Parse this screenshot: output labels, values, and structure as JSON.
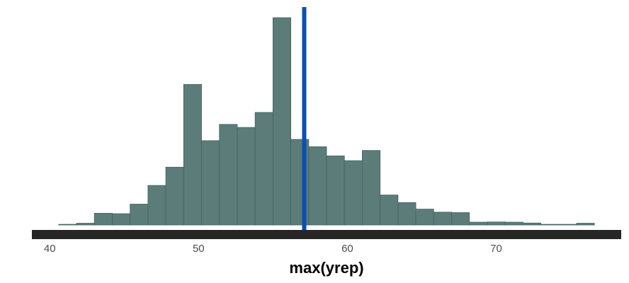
{
  "chart_data": {
    "type": "bar",
    "subtype": "histogram",
    "title": "",
    "xlabel": "max(yrep)",
    "ylabel": "",
    "xlim": [
      38.8,
      78.4
    ],
    "ylim": [
      0,
      100
    ],
    "x_ticks": [
      40,
      50,
      60,
      70
    ],
    "y_axis_visible": false,
    "grid": false,
    "bin_width": 1.2,
    "bin_start": 40.6,
    "bin_counts": [
      0.3,
      0.8,
      5.4,
      5.2,
      9.6,
      18.2,
      26.6,
      64.7,
      38.8,
      46.3,
      44.9,
      51.8,
      95.4,
      39.4,
      36.0,
      31.8,
      29.6,
      34.3,
      13.8,
      10.3,
      7.3,
      5.9,
      5.7,
      1.3,
      1.4,
      1.3,
      0.9,
      0.3,
      0.3,
      0.8
    ],
    "observed_value": 57.1,
    "colors": {
      "bars_fill": "#5c7c7a",
      "bars_stroke": "#3f6361",
      "observed_line": "#0b4fb0",
      "axis_bar": "#262626"
    }
  }
}
